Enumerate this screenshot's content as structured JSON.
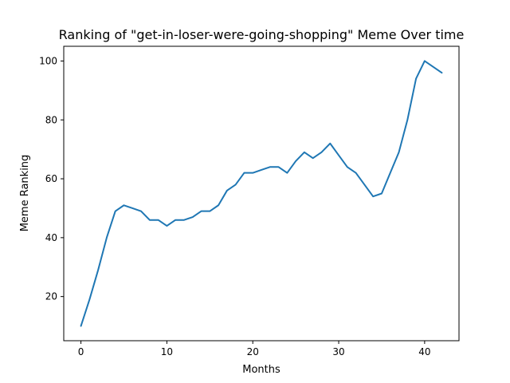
{
  "chart_data": {
    "type": "line",
    "title": "Ranking of \"get-in-loser-were-going-shopping\" Meme Over time",
    "xlabel": "Months",
    "ylabel": "Meme Ranking",
    "xlim": [
      -2,
      44
    ],
    "ylim": [
      5,
      105
    ],
    "xticks": [
      0,
      10,
      20,
      30,
      40
    ],
    "yticks": [
      20,
      40,
      60,
      80,
      100
    ],
    "grid": false,
    "series": [
      {
        "color": "#1f77b4",
        "x": [
          0,
          1,
          2,
          3,
          4,
          5,
          6,
          7,
          8,
          9,
          10,
          11,
          12,
          13,
          14,
          15,
          16,
          17,
          18,
          19,
          20,
          21,
          22,
          23,
          24,
          25,
          26,
          27,
          28,
          29,
          30,
          31,
          32,
          33,
          34,
          35,
          36,
          37,
          38,
          39,
          40,
          41,
          42
        ],
        "y": [
          10,
          19,
          29,
          40,
          49,
          51,
          50,
          49,
          46,
          46,
          44,
          46,
          46,
          47,
          49,
          49,
          51,
          56,
          58,
          62,
          62,
          63,
          64,
          64,
          62,
          66,
          69,
          67,
          69,
          72,
          68,
          64,
          62,
          58,
          54,
          55,
          62,
          69,
          80,
          94,
          100,
          98,
          96
        ]
      }
    ]
  }
}
